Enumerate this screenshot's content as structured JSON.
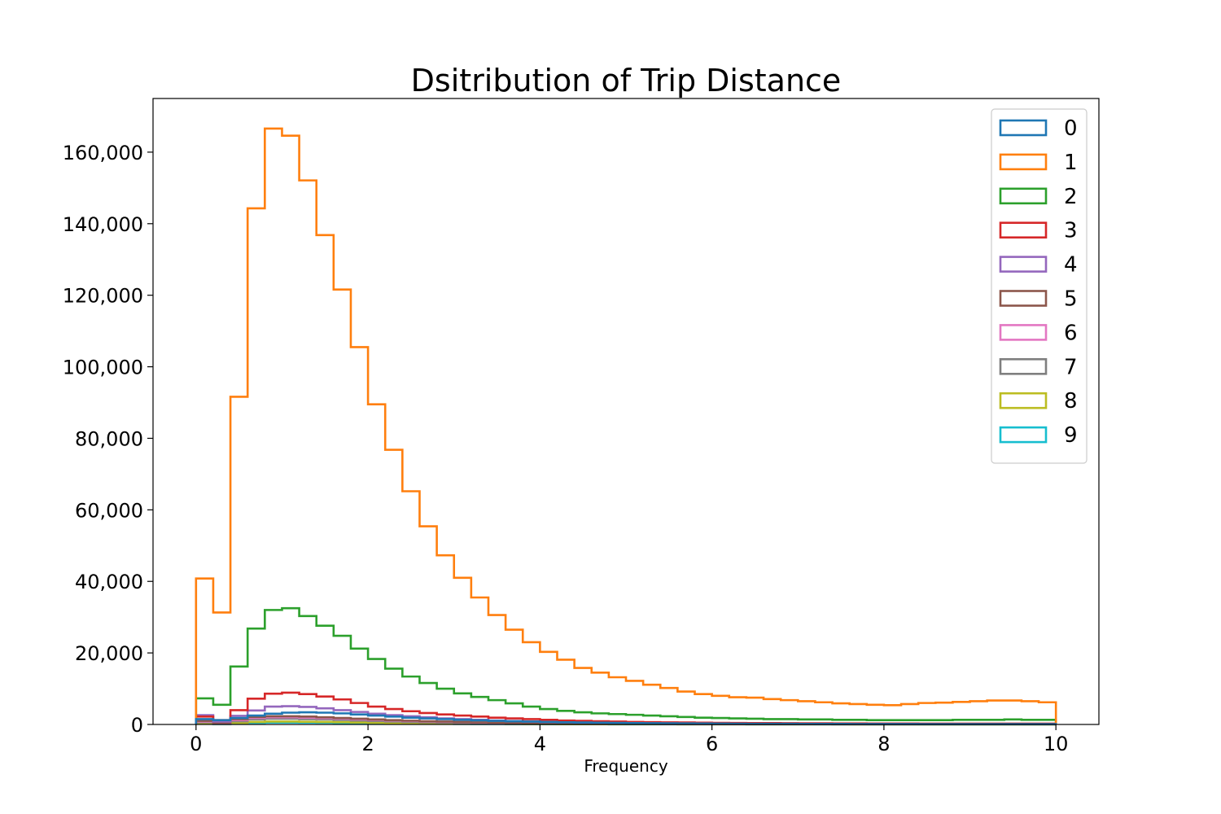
{
  "chart_data": {
    "type": "histogram-step",
    "title": "Dsitribution of Trip Distance",
    "xlabel": "Frequency",
    "ylabel": "",
    "xlim": [
      -0.5,
      10.5
    ],
    "ylim": [
      0,
      175000
    ],
    "xticks": [
      0,
      2,
      4,
      6,
      8,
      10
    ],
    "yticks": [
      0,
      20000,
      40000,
      60000,
      80000,
      100000,
      120000,
      140000,
      160000
    ],
    "grid": false,
    "legend_position": "top-right",
    "bin_width": 0.2,
    "x_start": 0,
    "series": [
      {
        "name": "0",
        "color": "#1f77b4",
        "values": [
          1500,
          1200,
          1800,
          2500,
          3000,
          3300,
          3400,
          3300,
          3100,
          2800,
          2500,
          2200,
          1900,
          1700,
          1500,
          1300,
          1150,
          1000,
          900,
          800,
          700,
          620,
          560,
          500,
          450,
          400,
          360,
          330,
          300,
          270,
          240,
          220,
          200,
          190,
          180,
          170,
          160,
          150,
          140,
          130,
          120,
          120,
          110,
          110,
          100,
          100,
          100,
          100,
          100,
          100
        ]
      },
      {
        "name": "1",
        "color": "#ff7f0e",
        "values": [
          40800,
          31300,
          91600,
          144300,
          166600,
          164600,
          152100,
          136800,
          121600,
          105500,
          89500,
          76800,
          65200,
          55400,
          47300,
          41000,
          35500,
          30600,
          26500,
          23000,
          20300,
          18100,
          15800,
          14500,
          13200,
          12200,
          11100,
          10200,
          9200,
          8500,
          8000,
          7600,
          7500,
          7100,
          6800,
          6500,
          6200,
          5900,
          5700,
          5500,
          5400,
          5700,
          6000,
          6100,
          6300,
          6500,
          6700,
          6700,
          6500,
          6200
        ]
      },
      {
        "name": "2",
        "color": "#2ca02c",
        "values": [
          7300,
          5500,
          16200,
          26800,
          32000,
          32500,
          30300,
          27600,
          24800,
          21200,
          18300,
          15600,
          13400,
          11600,
          10000,
          8700,
          7700,
          6800,
          5900,
          5000,
          4300,
          3800,
          3400,
          3100,
          2900,
          2700,
          2500,
          2300,
          2100,
          1900,
          1800,
          1700,
          1600,
          1500,
          1500,
          1400,
          1400,
          1300,
          1300,
          1200,
          1200,
          1200,
          1200,
          1200,
          1300,
          1300,
          1300,
          1400,
          1300,
          1300
        ]
      },
      {
        "name": "3",
        "color": "#d62728",
        "values": [
          2200,
          1200,
          4000,
          7200,
          8600,
          8900,
          8500,
          7800,
          7000,
          6000,
          5000,
          4300,
          3700,
          3200,
          2800,
          2500,
          2200,
          1900,
          1700,
          1500,
          1300,
          1100,
          1000,
          900,
          800,
          700,
          650,
          600,
          550,
          500,
          450,
          420,
          400,
          380,
          360,
          340,
          320,
          300,
          290,
          280,
          270,
          260,
          250,
          250,
          250,
          250,
          250,
          250,
          250,
          250
        ]
      },
      {
        "name": "4",
        "color": "#9467bd",
        "values": [
          2600,
          800,
          2400,
          3900,
          5000,
          5100,
          4900,
          4500,
          4000,
          3500,
          3000,
          2600,
          2300,
          2000,
          1700,
          1500,
          1300,
          1100,
          950,
          800,
          700,
          600,
          520,
          460,
          400,
          360,
          320,
          290,
          260,
          240,
          220,
          200,
          190,
          180,
          170,
          160,
          150,
          140,
          130,
          120,
          120,
          110,
          110,
          100,
          100,
          100,
          100,
          100,
          100,
          100
        ]
      },
      {
        "name": "5",
        "color": "#8c564b",
        "values": [
          1000,
          500,
          1500,
          2100,
          2300,
          2300,
          2200,
          2000,
          1800,
          1600,
          1400,
          1200,
          1050,
          900,
          800,
          700,
          600,
          520,
          450,
          400,
          350,
          310,
          280,
          250,
          220,
          200,
          180,
          160,
          150,
          140,
          130,
          120,
          110,
          100,
          100,
          90,
          90,
          80,
          80,
          70,
          70,
          70,
          60,
          60,
          60,
          60,
          60,
          60,
          60,
          60
        ]
      },
      {
        "name": "6",
        "color": "#e377c2",
        "values": [
          800,
          400,
          1200,
          1800,
          2000,
          2000,
          1900,
          1750,
          1600,
          1400,
          1250,
          1100,
          950,
          820,
          720,
          630,
          550,
          480,
          420,
          370,
          330,
          290,
          260,
          230,
          210,
          190,
          170,
          150,
          140,
          130,
          120,
          110,
          100,
          95,
          90,
          85,
          80,
          75,
          70,
          65,
          60,
          60,
          55,
          55,
          55,
          55,
          55,
          55,
          55,
          55
        ]
      },
      {
        "name": "7",
        "color": "#7f7f7f",
        "values": [
          600,
          300,
          900,
          1400,
          1600,
          1600,
          1500,
          1400,
          1250,
          1100,
          950,
          820,
          700,
          600,
          520,
          450,
          400,
          350,
          300,
          260,
          230,
          200,
          180,
          160,
          140,
          130,
          120,
          110,
          100,
          90,
          85,
          80,
          75,
          70,
          65,
          60,
          55,
          50,
          50,
          45,
          45,
          45,
          40,
          40,
          40,
          40,
          40,
          40,
          40,
          40
        ]
      },
      {
        "name": "8",
        "color": "#bcbd22",
        "values": [
          300,
          150,
          450,
          700,
          800,
          800,
          760,
          700,
          630,
          550,
          480,
          410,
          350,
          300,
          260,
          230,
          200,
          175,
          150,
          130,
          115,
          100,
          90,
          80,
          70,
          65,
          60,
          55,
          50,
          45,
          42,
          40,
          38,
          35,
          33,
          30,
          28,
          26,
          25,
          24,
          23,
          22,
          22,
          21,
          21,
          21,
          21,
          21,
          21,
          21
        ]
      },
      {
        "name": "9",
        "color": "#17becf",
        "values": [
          200,
          100,
          300,
          450,
          520,
          520,
          500,
          460,
          410,
          360,
          310,
          270,
          230,
          200,
          170,
          150,
          130,
          115,
          100,
          90,
          80,
          70,
          62,
          55,
          50,
          45,
          40,
          37,
          34,
          31,
          29,
          27,
          25,
          24,
          23,
          22,
          21,
          20,
          19,
          18,
          18,
          17,
          17,
          16,
          16,
          16,
          16,
          16,
          16,
          16
        ]
      }
    ]
  }
}
